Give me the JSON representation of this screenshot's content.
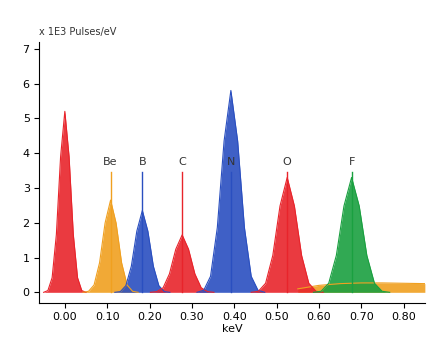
{
  "chart_data": {
    "type": "area",
    "y_axis_label": "x 1E3 Pulses/eV",
    "x_axis_label": "keV",
    "xlim": [
      -0.06,
      0.85
    ],
    "ylim": [
      -0.3,
      7.2
    ],
    "xticks": [
      {
        "value": 0.0,
        "label": "0.00"
      },
      {
        "value": 0.1,
        "label": "0.10"
      },
      {
        "value": 0.2,
        "label": "0.20"
      },
      {
        "value": 0.3,
        "label": "0.30"
      },
      {
        "value": 0.4,
        "label": "0.40"
      },
      {
        "value": 0.5,
        "label": "0.50"
      },
      {
        "value": 0.6,
        "label": "0.60"
      },
      {
        "value": 0.7,
        "label": "0.70"
      },
      {
        "value": 0.8,
        "label": "0.80"
      }
    ],
    "yticks": [
      0,
      1,
      2,
      3,
      4,
      5,
      6,
      7
    ],
    "grid": false,
    "series": [
      {
        "color": "#f0a020",
        "x": [
          0.55,
          0.6,
          0.65,
          0.7,
          0.75,
          0.8,
          0.85
        ],
        "values": [
          0.1,
          0.2,
          0.25,
          0.27,
          0.27,
          0.26,
          0.25
        ]
      },
      {
        "color": "#e8242b",
        "x": [
          -0.05,
          -0.04,
          -0.03,
          -0.02,
          -0.01,
          0.0,
          0.01,
          0.02,
          0.03,
          0.04,
          0.05
        ],
        "values": [
          0,
          0.05,
          0.42,
          1.66,
          3.9,
          5.2,
          3.9,
          1.66,
          0.42,
          0.05,
          0
        ]
      },
      {
        "name": "Be",
        "color": "#f0a020",
        "x": [
          0.043,
          0.056,
          0.069,
          0.082,
          0.095,
          0.108,
          0.121,
          0.134,
          0.147,
          0.16,
          0.173
        ],
        "values": [
          0,
          0.03,
          0.21,
          0.85,
          1.99,
          2.65,
          1.99,
          0.85,
          0.21,
          0.03,
          0
        ]
      },
      {
        "name": "B",
        "color": "#2a4fc0",
        "x": [
          0.118,
          0.131,
          0.144,
          0.157,
          0.17,
          0.183,
          0.196,
          0.209,
          0.222,
          0.235,
          0.248
        ],
        "values": [
          0,
          0.02,
          0.19,
          0.75,
          1.76,
          2.35,
          1.76,
          0.75,
          0.19,
          0.02,
          0
        ]
      },
      {
        "name": "C",
        "color": "#e8242b",
        "x": [
          0.202,
          0.217,
          0.232,
          0.247,
          0.262,
          0.277,
          0.292,
          0.307,
          0.322,
          0.337,
          0.352
        ],
        "values": [
          0,
          0.02,
          0.13,
          0.53,
          1.24,
          1.65,
          1.24,
          0.53,
          0.13,
          0.02,
          0
        ]
      },
      {
        "name": "N",
        "color": "#2a4fc0",
        "x": [
          0.312,
          0.328,
          0.344,
          0.36,
          0.376,
          0.392,
          0.408,
          0.424,
          0.44,
          0.456,
          0.472
        ],
        "values": [
          0,
          0.06,
          0.46,
          1.86,
          4.35,
          5.8,
          4.35,
          1.86,
          0.46,
          0.06,
          0
        ]
      },
      {
        "name": "O",
        "color": "#e8242b",
        "x": [
          0.44,
          0.457,
          0.474,
          0.491,
          0.508,
          0.525,
          0.542,
          0.559,
          0.576,
          0.593,
          0.61
        ],
        "values": [
          0,
          0.03,
          0.26,
          1.06,
          2.48,
          3.3,
          2.48,
          1.06,
          0.26,
          0.03,
          0
        ]
      },
      {
        "name": "F",
        "color": "#1aa040",
        "x": [
          0.587,
          0.605,
          0.623,
          0.641,
          0.659,
          0.677,
          0.695,
          0.713,
          0.731,
          0.749,
          0.767
        ],
        "values": [
          0,
          0.03,
          0.26,
          1.06,
          2.48,
          3.3,
          2.48,
          1.06,
          0.26,
          0.03,
          0
        ]
      }
    ]
  }
}
